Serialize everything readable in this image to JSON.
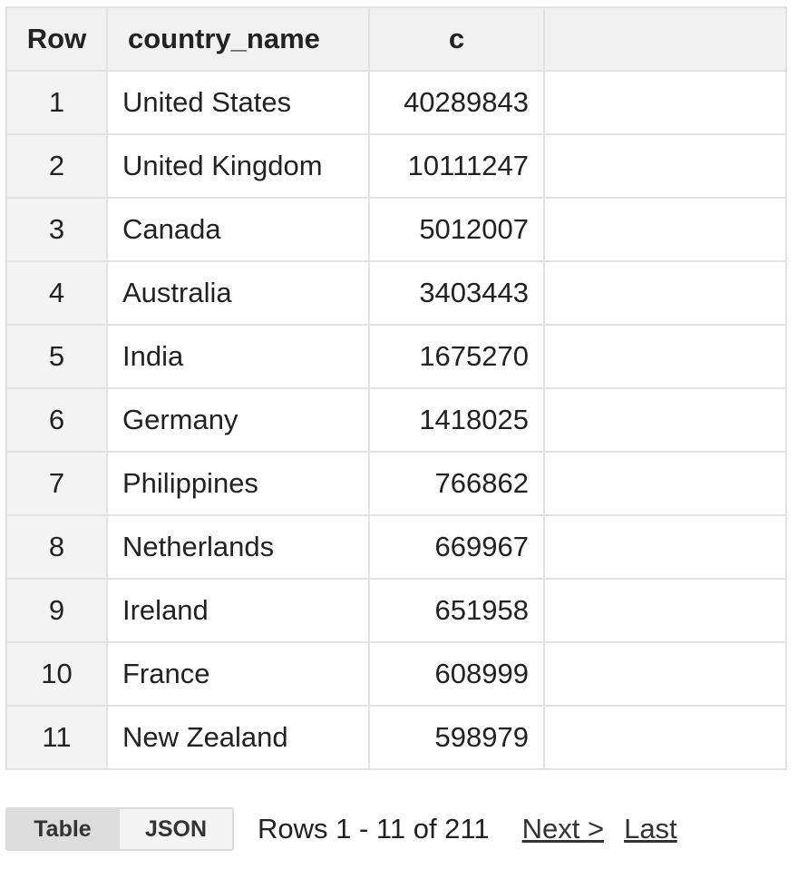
{
  "table": {
    "headers": [
      "Row",
      "country_name",
      "c",
      ""
    ],
    "rows": [
      {
        "row": "1",
        "country_name": "United States",
        "c": "40289843"
      },
      {
        "row": "2",
        "country_name": "United Kingdom",
        "c": "10111247"
      },
      {
        "row": "3",
        "country_name": "Canada",
        "c": "5012007"
      },
      {
        "row": "4",
        "country_name": "Australia",
        "c": "3403443"
      },
      {
        "row": "5",
        "country_name": "India",
        "c": "1675270"
      },
      {
        "row": "6",
        "country_name": "Germany",
        "c": "1418025"
      },
      {
        "row": "7",
        "country_name": "Philippines",
        "c": "766862"
      },
      {
        "row": "8",
        "country_name": "Netherlands",
        "c": "669967"
      },
      {
        "row": "9",
        "country_name": "Ireland",
        "c": "651958"
      },
      {
        "row": "10",
        "country_name": "France",
        "c": "608999"
      },
      {
        "row": "11",
        "country_name": "New Zealand",
        "c": "598979"
      }
    ]
  },
  "footer": {
    "tabs": [
      {
        "label": "Table",
        "active": true
      },
      {
        "label": "JSON",
        "active": false
      }
    ],
    "rows_info": "Rows 1 - 11 of 211",
    "next_label": "Next >",
    "last_label": "Last"
  },
  "colors": {
    "border": "#e2e2e2",
    "header_bg": "#f1f1f1",
    "row_number_bg": "#f3f3f3",
    "active_tab_bg": "#dcdcdc"
  }
}
